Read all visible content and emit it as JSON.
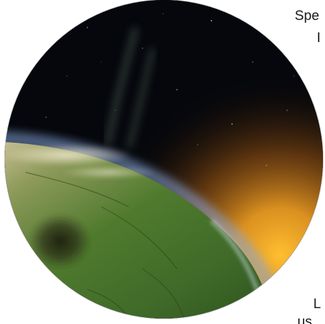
{
  "text_fragments": {
    "top_line_1": "Spe",
    "top_line_2": "I",
    "bottom_line_1": "L",
    "bottom_line_2": "us"
  },
  "scene": {
    "description_icon": "planet-horizon-image",
    "colors": {
      "space": "#05070c",
      "glow": "#f7a51e",
      "planet_green": "#4f7a2e",
      "atmosphere": "#7fa2d8"
    }
  }
}
